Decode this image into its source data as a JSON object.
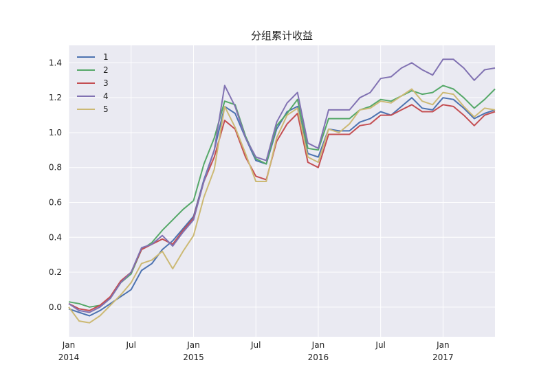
{
  "chart_data": {
    "type": "line",
    "title": "分组累计收益",
    "xlabel": "",
    "ylabel": "",
    "ylim": [
      -0.17,
      1.5
    ],
    "grid": true,
    "legend_position": "top-left",
    "x_tick_labels": [
      {
        "date": "2014-01",
        "line1": "Jan",
        "line2": "2014"
      },
      {
        "date": "2014-07",
        "line1": "Jul",
        "line2": ""
      },
      {
        "date": "2015-01",
        "line1": "Jan",
        "line2": "2015"
      },
      {
        "date": "2015-07",
        "line1": "Jul",
        "line2": ""
      },
      {
        "date": "2016-01",
        "line1": "Jan",
        "line2": "2016"
      },
      {
        "date": "2016-07",
        "line1": "Jul",
        "line2": ""
      },
      {
        "date": "2017-01",
        "line1": "Jan",
        "line2": "2017"
      }
    ],
    "y_ticks": [
      "0.0",
      "0.2",
      "0.4",
      "0.6",
      "0.8",
      "1.0",
      "1.2",
      "1.4"
    ],
    "x": [
      "2014-01",
      "2014-02",
      "2014-03",
      "2014-04",
      "2014-05",
      "2014-06",
      "2014-07",
      "2014-08",
      "2014-09",
      "2014-10",
      "2014-11",
      "2014-12",
      "2015-01",
      "2015-02",
      "2015-03",
      "2015-04",
      "2015-05",
      "2015-06",
      "2015-07",
      "2015-08",
      "2015-09",
      "2015-10",
      "2015-11",
      "2015-12",
      "2016-01",
      "2016-02",
      "2016-03",
      "2016-04",
      "2016-05",
      "2016-06",
      "2016-07",
      "2016-08",
      "2016-09",
      "2016-10",
      "2016-11",
      "2016-12",
      "2017-01",
      "2017-02",
      "2017-03",
      "2017-04",
      "2017-05",
      "2017-06"
    ],
    "series": [
      {
        "name": "1",
        "color": "#4c72b0",
        "values": [
          -0.01,
          -0.03,
          -0.05,
          -0.02,
          0.02,
          0.06,
          0.1,
          0.21,
          0.25,
          0.33,
          0.38,
          0.45,
          0.52,
          0.73,
          0.9,
          1.15,
          1.11,
          0.97,
          0.84,
          0.82,
          1.02,
          1.12,
          1.15,
          0.88,
          0.86,
          1.02,
          1.01,
          1.01,
          1.06,
          1.08,
          1.12,
          1.1,
          1.15,
          1.2,
          1.14,
          1.13,
          1.2,
          1.19,
          1.14,
          1.08,
          1.11,
          1.13
        ]
      },
      {
        "name": "2",
        "color": "#55a868",
        "values": [
          0.03,
          0.02,
          0.0,
          0.01,
          0.05,
          0.14,
          0.19,
          0.33,
          0.37,
          0.44,
          0.5,
          0.56,
          0.61,
          0.82,
          0.97,
          1.18,
          1.16,
          0.98,
          0.85,
          0.82,
          1.04,
          1.11,
          1.19,
          0.91,
          0.9,
          1.08,
          1.08,
          1.08,
          1.13,
          1.15,
          1.19,
          1.18,
          1.21,
          1.24,
          1.22,
          1.23,
          1.27,
          1.25,
          1.2,
          1.14,
          1.19,
          1.25
        ]
      },
      {
        "name": "3",
        "color": "#c44e52",
        "values": [
          0.02,
          -0.01,
          -0.02,
          0.01,
          0.06,
          0.15,
          0.2,
          0.33,
          0.36,
          0.39,
          0.36,
          0.44,
          0.51,
          0.72,
          0.86,
          1.07,
          1.02,
          0.86,
          0.75,
          0.73,
          0.95,
          1.05,
          1.11,
          0.83,
          0.8,
          0.99,
          0.99,
          0.99,
          1.04,
          1.05,
          1.1,
          1.1,
          1.13,
          1.16,
          1.12,
          1.12,
          1.16,
          1.15,
          1.1,
          1.04,
          1.1,
          1.12
        ]
      },
      {
        "name": "4",
        "color": "#8172b2",
        "values": [
          0.02,
          -0.02,
          -0.03,
          0.0,
          0.05,
          0.14,
          0.2,
          0.34,
          0.36,
          0.41,
          0.35,
          0.43,
          0.5,
          0.72,
          0.9,
          1.27,
          1.15,
          0.97,
          0.86,
          0.84,
          1.06,
          1.17,
          1.23,
          0.94,
          0.91,
          1.13,
          1.13,
          1.13,
          1.2,
          1.23,
          1.31,
          1.32,
          1.37,
          1.4,
          1.36,
          1.33,
          1.42,
          1.42,
          1.37,
          1.3,
          1.36,
          1.37
        ]
      },
      {
        "name": "5",
        "color": "#ccb974",
        "values": [
          0.0,
          -0.08,
          -0.09,
          -0.05,
          0.01,
          0.07,
          0.14,
          0.25,
          0.27,
          0.32,
          0.22,
          0.32,
          0.41,
          0.63,
          0.79,
          1.15,
          1.03,
          0.88,
          0.72,
          0.72,
          0.97,
          1.1,
          1.14,
          0.86,
          0.83,
          1.02,
          1.0,
          1.05,
          1.13,
          1.14,
          1.18,
          1.17,
          1.21,
          1.25,
          1.18,
          1.16,
          1.23,
          1.22,
          1.15,
          1.09,
          1.14,
          1.13
        ]
      }
    ]
  }
}
